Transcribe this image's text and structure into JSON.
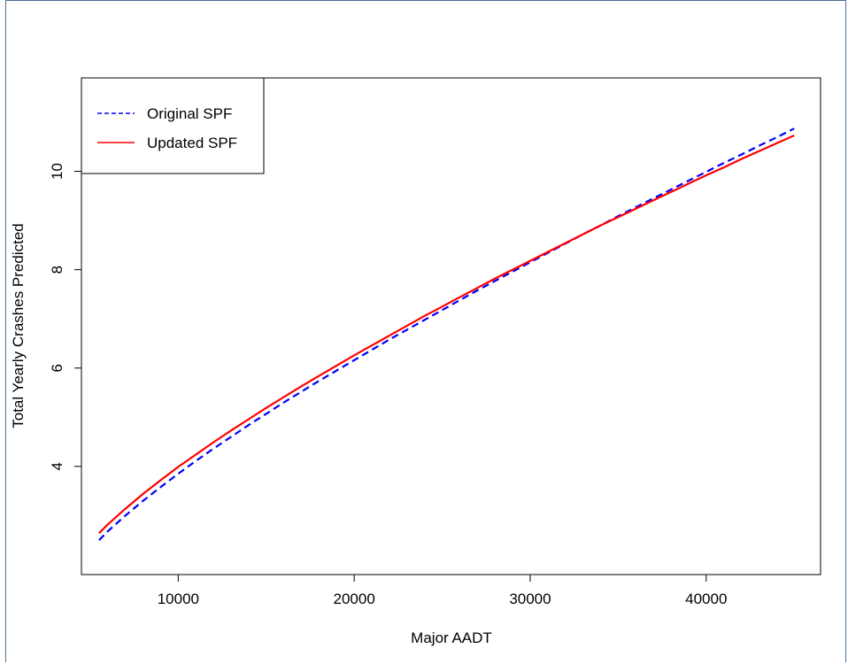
{
  "chart_data": {
    "type": "line",
    "xlabel": "Major AADT",
    "ylabel": "Total Yearly Crashes Predicted",
    "xlim": [
      4500,
      46500
    ],
    "ylim": [
      1.8,
      11.9
    ],
    "x_ticks": [
      10000,
      20000,
      30000,
      40000
    ],
    "x_tick_labels": [
      "10000",
      "20000",
      "30000",
      "40000"
    ],
    "y_ticks": [
      4,
      6,
      8,
      10
    ],
    "y_tick_labels": [
      "4",
      "6",
      "8",
      "10"
    ],
    "legend_position": "top-left",
    "series": [
      {
        "name": "Original SPF",
        "color": "#0000ff",
        "dash": "dashed",
        "x": [
          5500,
          6000,
          7000,
          8000,
          9000,
          10000,
          11000,
          12000,
          13000,
          14000,
          15000,
          16000,
          17000,
          18000,
          19000,
          20000,
          21000,
          22000,
          23000,
          24000,
          25000,
          26000,
          27000,
          28000,
          29000,
          30000,
          31000,
          32000,
          33000,
          34000,
          35000,
          36000,
          37000,
          38000,
          39000,
          40000,
          41000,
          42000,
          43000,
          44000,
          45000
        ],
        "y": [
          2.5,
          2.68,
          3.0,
          3.3,
          3.58,
          3.85,
          4.11,
          4.36,
          4.6,
          4.84,
          5.07,
          5.3,
          5.52,
          5.74,
          5.95,
          6.16,
          6.37,
          6.58,
          6.78,
          6.98,
          7.18,
          7.38,
          7.58,
          7.77,
          7.96,
          8.15,
          8.34,
          8.53,
          8.72,
          8.9,
          9.09,
          9.27,
          9.45,
          9.63,
          9.81,
          9.99,
          10.17,
          10.34,
          10.52,
          10.69,
          10.87
        ]
      },
      {
        "name": "Updated SPF",
        "color": "#ff0000",
        "dash": "solid",
        "x": [
          5500,
          6000,
          7000,
          8000,
          9000,
          10000,
          11000,
          12000,
          13000,
          14000,
          15000,
          16000,
          17000,
          18000,
          19000,
          20000,
          21000,
          22000,
          23000,
          24000,
          25000,
          26000,
          27000,
          28000,
          29000,
          30000,
          31000,
          32000,
          33000,
          34000,
          35000,
          36000,
          37000,
          38000,
          39000,
          40000,
          41000,
          42000,
          43000,
          44000,
          45000
        ],
        "y": [
          2.64,
          2.82,
          3.14,
          3.44,
          3.72,
          3.99,
          4.24,
          4.49,
          4.73,
          4.96,
          5.19,
          5.41,
          5.63,
          5.84,
          6.05,
          6.26,
          6.46,
          6.66,
          6.86,
          7.06,
          7.25,
          7.44,
          7.63,
          7.82,
          8.0,
          8.18,
          8.36,
          8.54,
          8.72,
          8.9,
          9.07,
          9.24,
          9.41,
          9.58,
          9.75,
          9.92,
          10.08,
          10.25,
          10.41,
          10.57,
          10.73
        ]
      }
    ]
  }
}
